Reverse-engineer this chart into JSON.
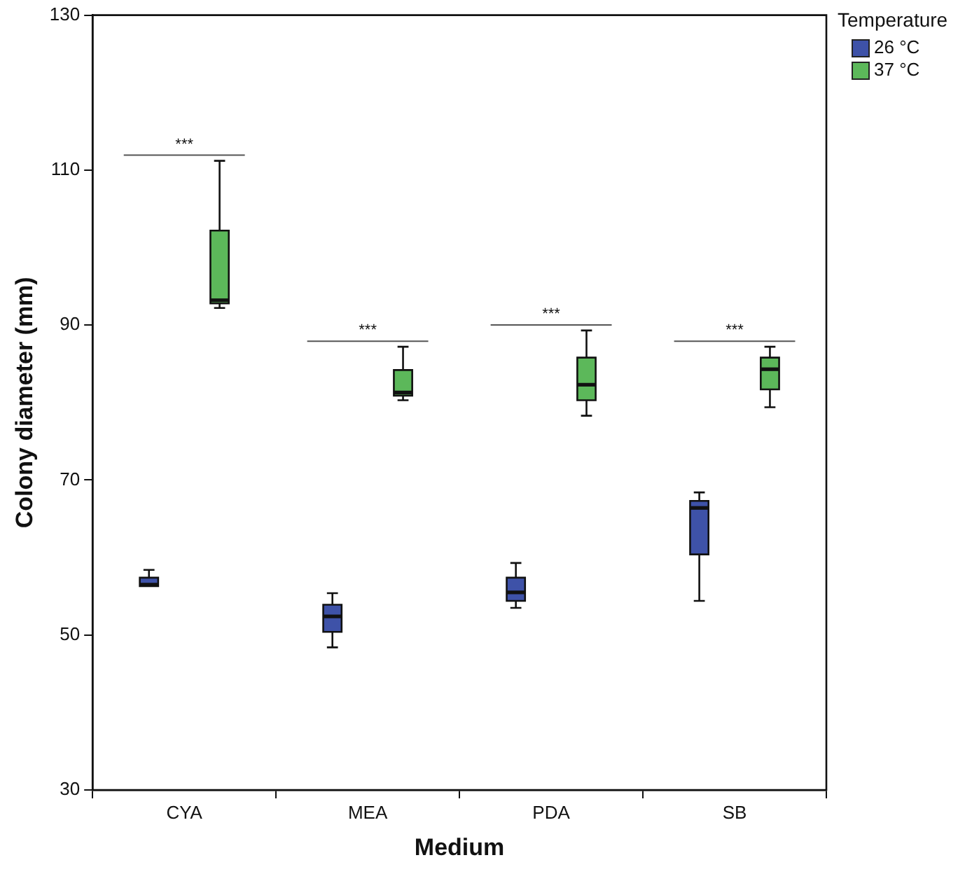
{
  "chart_data": {
    "type": "box",
    "xlabel": "Medium",
    "ylabel": "Colony diameter (mm)",
    "legend_title": "Temperature",
    "legend": "top right",
    "grid": false,
    "categories": [
      "CYA",
      "MEA",
      "PDA",
      "SB"
    ],
    "ylim": [
      30,
      130
    ],
    "yticks": [
      30,
      50,
      70,
      90,
      110,
      130
    ],
    "series": [
      {
        "name": "26 °C",
        "color": "#3e52a8",
        "boxes": [
          {
            "low": 56.3,
            "q1": 56.3,
            "median": 56.5,
            "q3": 57.4,
            "high": 58.4
          },
          {
            "low": 48.4,
            "q1": 50.4,
            "median": 52.4,
            "q3": 53.9,
            "high": 55.4
          },
          {
            "low": 53.5,
            "q1": 54.4,
            "median": 55.5,
            "q3": 57.4,
            "high": 59.3
          },
          {
            "low": 54.4,
            "q1": 60.4,
            "median": 66.4,
            "q3": 67.3,
            "high": 68.4
          }
        ]
      },
      {
        "name": "37 °C",
        "color": "#5cb85a",
        "boxes": [
          {
            "low": 92.2,
            "q1": 92.8,
            "median": 93.2,
            "q3": 102.2,
            "high": 111.2
          },
          {
            "low": 80.3,
            "q1": 80.9,
            "median": 81.3,
            "q3": 84.2,
            "high": 87.2
          },
          {
            "low": 78.3,
            "q1": 80.3,
            "median": 82.3,
            "q3": 85.8,
            "high": 89.3
          },
          {
            "low": 79.4,
            "q1": 81.7,
            "median": 84.3,
            "q3": 85.8,
            "high": 87.2
          }
        ]
      }
    ],
    "annotations": [
      "***",
      "***",
      "***",
      "***"
    ]
  }
}
